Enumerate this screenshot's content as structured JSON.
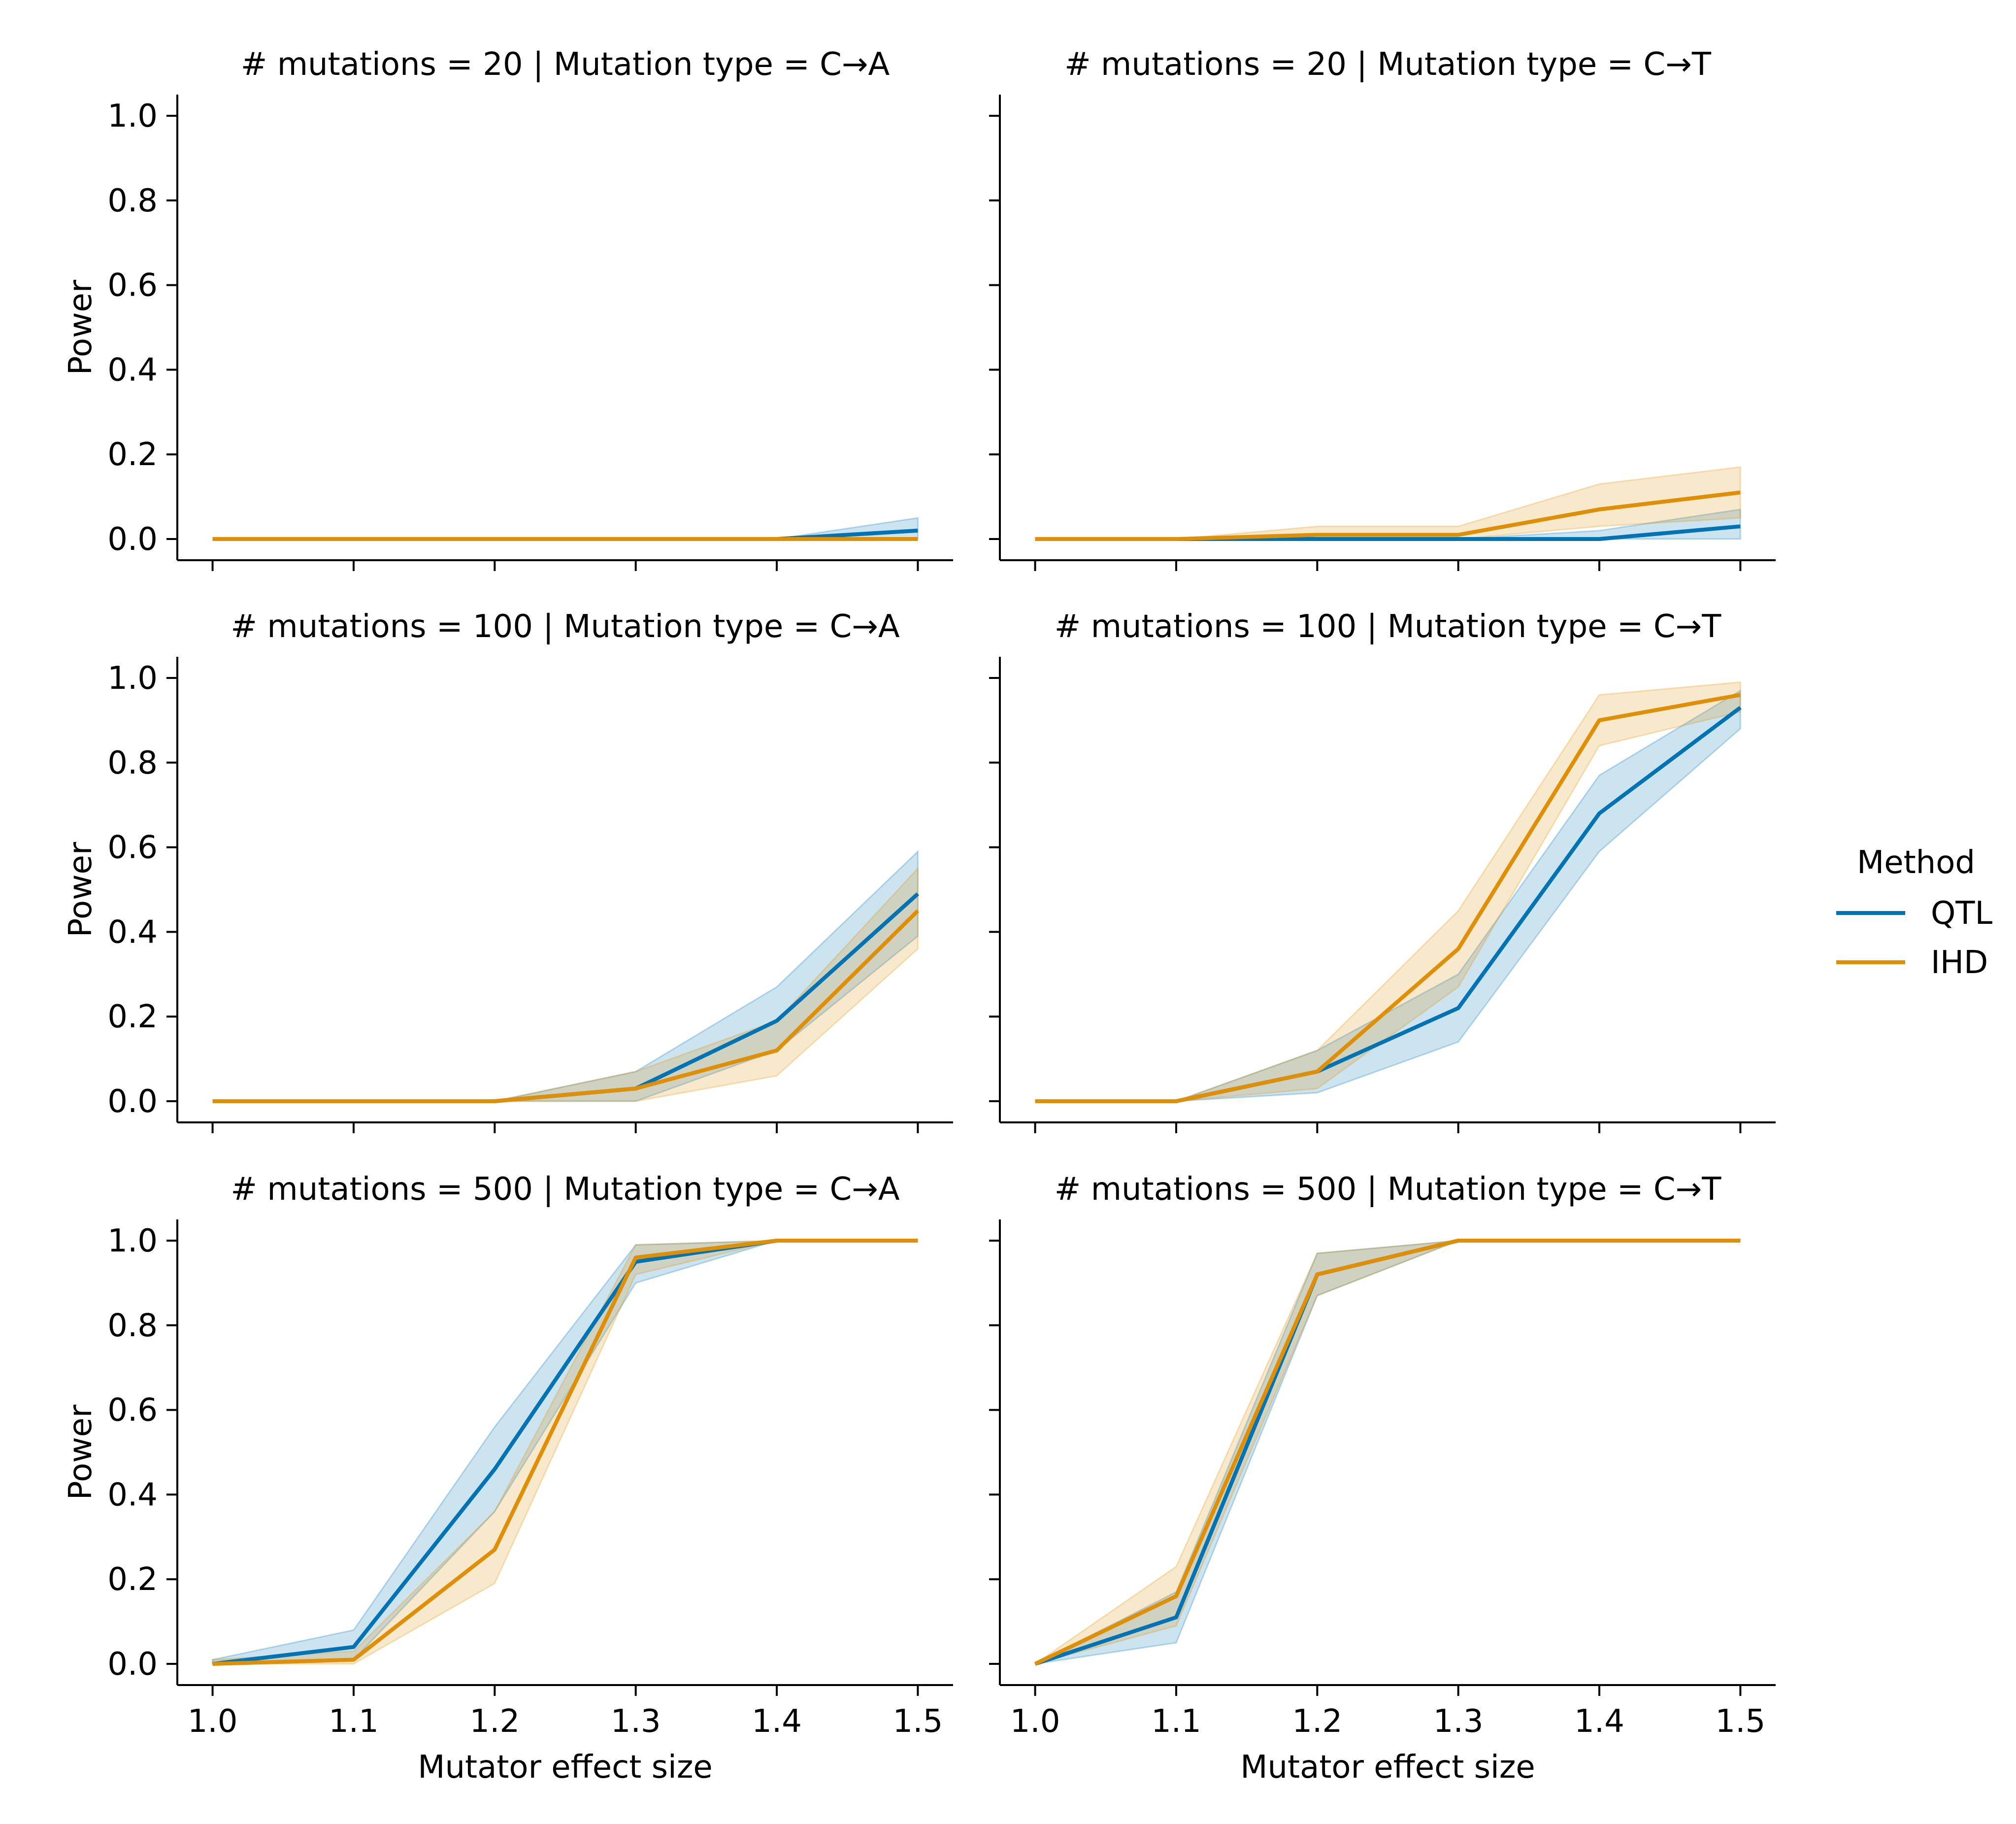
{
  "legend": {
    "title": "Method",
    "placement": "right-center",
    "entries": [
      {
        "label": "QTL",
        "color": "#0173b2"
      },
      {
        "label": "IHD",
        "color": "#de8f05"
      }
    ]
  },
  "chart_data": [
    {
      "type": "line",
      "title": "# mutations = 20 | Mutation type = C→A",
      "xlabel": "",
      "ylabel": "Power",
      "x": [
        1.0,
        1.1,
        1.2,
        1.3,
        1.4,
        1.5
      ],
      "xlim": [
        0.975,
        1.525
      ],
      "ylim": [
        -0.05,
        1.05
      ],
      "xticks": [
        "1.0",
        "1.1",
        "1.2",
        "1.3",
        "1.4",
        "1.5"
      ],
      "yticks": [
        "0.0",
        "0.2",
        "0.4",
        "0.6",
        "0.8",
        "1.0"
      ],
      "show_xtick_labels": false,
      "show_ytick_labels": true,
      "series": [
        {
          "name": "QTL",
          "color": "#0173b2",
          "values": [
            0,
            0,
            0,
            0,
            0,
            0.02
          ],
          "lower": [
            0,
            0,
            0,
            0,
            0,
            0
          ],
          "upper": [
            0,
            0,
            0,
            0,
            0,
            0.05
          ]
        },
        {
          "name": "IHD",
          "color": "#de8f05",
          "values": [
            0,
            0,
            0,
            0,
            0,
            0
          ],
          "lower": [
            0,
            0,
            0,
            0,
            0,
            0
          ],
          "upper": [
            0,
            0,
            0,
            0,
            0,
            0
          ]
        }
      ]
    },
    {
      "type": "line",
      "title": "# mutations = 20 | Mutation type = C→T",
      "xlabel": "",
      "ylabel": "",
      "x": [
        1.0,
        1.1,
        1.2,
        1.3,
        1.4,
        1.5
      ],
      "xlim": [
        0.975,
        1.525
      ],
      "ylim": [
        -0.05,
        1.05
      ],
      "xticks": [
        "1.0",
        "1.1",
        "1.2",
        "1.3",
        "1.4",
        "1.5"
      ],
      "yticks": [
        "0.0",
        "0.2",
        "0.4",
        "0.6",
        "0.8",
        "1.0"
      ],
      "show_xtick_labels": false,
      "show_ytick_labels": false,
      "series": [
        {
          "name": "QTL",
          "color": "#0173b2",
          "values": [
            0,
            0,
            0,
            0,
            0,
            0.03
          ],
          "lower": [
            0,
            0,
            0,
            0,
            0,
            0
          ],
          "upper": [
            0,
            0,
            0,
            0,
            0.02,
            0.07
          ]
        },
        {
          "name": "IHD",
          "color": "#de8f05",
          "values": [
            0,
            0,
            0.01,
            0.01,
            0.07,
            0.11
          ],
          "lower": [
            0,
            0,
            0,
            0,
            0.03,
            0.05
          ],
          "upper": [
            0,
            0,
            0.03,
            0.03,
            0.13,
            0.17
          ]
        }
      ]
    },
    {
      "type": "line",
      "title": "# mutations = 100 | Mutation type = C→A",
      "xlabel": "",
      "ylabel": "Power",
      "x": [
        1.0,
        1.1,
        1.2,
        1.3,
        1.4,
        1.5
      ],
      "xlim": [
        0.975,
        1.525
      ],
      "ylim": [
        -0.05,
        1.05
      ],
      "xticks": [
        "1.0",
        "1.1",
        "1.2",
        "1.3",
        "1.4",
        "1.5"
      ],
      "yticks": [
        "0.0",
        "0.2",
        "0.4",
        "0.6",
        "0.8",
        "1.0"
      ],
      "show_xtick_labels": false,
      "show_ytick_labels": true,
      "series": [
        {
          "name": "QTL",
          "color": "#0173b2",
          "values": [
            0,
            0,
            0,
            0.03,
            0.19,
            0.49
          ],
          "lower": [
            0,
            0,
            0,
            0,
            0.12,
            0.39
          ],
          "upper": [
            0,
            0,
            0,
            0.07,
            0.27,
            0.59
          ]
        },
        {
          "name": "IHD",
          "color": "#de8f05",
          "values": [
            0,
            0,
            0,
            0.03,
            0.12,
            0.45
          ],
          "lower": [
            0,
            0,
            0,
            0,
            0.06,
            0.36
          ],
          "upper": [
            0,
            0,
            0,
            0.07,
            0.19,
            0.55
          ]
        }
      ]
    },
    {
      "type": "line",
      "title": "# mutations = 100 | Mutation type = C→T",
      "xlabel": "",
      "ylabel": "",
      "x": [
        1.0,
        1.1,
        1.2,
        1.3,
        1.4,
        1.5
      ],
      "xlim": [
        0.975,
        1.525
      ],
      "ylim": [
        -0.05,
        1.05
      ],
      "xticks": [
        "1.0",
        "1.1",
        "1.2",
        "1.3",
        "1.4",
        "1.5"
      ],
      "yticks": [
        "0.0",
        "0.2",
        "0.4",
        "0.6",
        "0.8",
        "1.0"
      ],
      "show_xtick_labels": false,
      "show_ytick_labels": false,
      "series": [
        {
          "name": "QTL",
          "color": "#0173b2",
          "values": [
            0,
            0,
            0.07,
            0.22,
            0.68,
            0.93
          ],
          "lower": [
            0,
            0,
            0.02,
            0.14,
            0.59,
            0.88
          ],
          "upper": [
            0,
            0,
            0.12,
            0.3,
            0.77,
            0.97
          ]
        },
        {
          "name": "IHD",
          "color": "#de8f05",
          "values": [
            0,
            0,
            0.07,
            0.36,
            0.9,
            0.96
          ],
          "lower": [
            0,
            0,
            0.03,
            0.27,
            0.84,
            0.92
          ],
          "upper": [
            0,
            0,
            0.12,
            0.45,
            0.96,
            0.99
          ]
        }
      ]
    },
    {
      "type": "line",
      "title": "# mutations = 500 | Mutation type = C→A",
      "xlabel": "Mutator effect size",
      "ylabel": "Power",
      "x": [
        1.0,
        1.1,
        1.2,
        1.3,
        1.4,
        1.5
      ],
      "xlim": [
        0.975,
        1.525
      ],
      "ylim": [
        -0.05,
        1.05
      ],
      "xticks": [
        "1.0",
        "1.1",
        "1.2",
        "1.3",
        "1.4",
        "1.5"
      ],
      "yticks": [
        "0.0",
        "0.2",
        "0.4",
        "0.6",
        "0.8",
        "1.0"
      ],
      "show_xtick_labels": true,
      "show_ytick_labels": true,
      "series": [
        {
          "name": "QTL",
          "color": "#0173b2",
          "values": [
            0,
            0.04,
            0.46,
            0.95,
            1.0,
            1.0
          ],
          "lower": [
            0,
            0.01,
            0.36,
            0.9,
            1.0,
            1.0
          ],
          "upper": [
            0.01,
            0.08,
            0.56,
            0.99,
            1.0,
            1.0
          ]
        },
        {
          "name": "IHD",
          "color": "#de8f05",
          "values": [
            0,
            0.01,
            0.27,
            0.96,
            1.0,
            1.0
          ],
          "lower": [
            0,
            0,
            0.19,
            0.92,
            1.0,
            1.0
          ],
          "upper": [
            0.01,
            0.03,
            0.36,
            0.99,
            1.0,
            1.0
          ]
        }
      ]
    },
    {
      "type": "line",
      "title": "# mutations = 500 | Mutation type = C→T",
      "xlabel": "Mutator effect size",
      "ylabel": "",
      "x": [
        1.0,
        1.1,
        1.2,
        1.3,
        1.4,
        1.5
      ],
      "xlim": [
        0.975,
        1.525
      ],
      "ylim": [
        -0.05,
        1.05
      ],
      "xticks": [
        "1.0",
        "1.1",
        "1.2",
        "1.3",
        "1.4",
        "1.5"
      ],
      "yticks": [
        "0.0",
        "0.2",
        "0.4",
        "0.6",
        "0.8",
        "1.0"
      ],
      "show_xtick_labels": true,
      "show_ytick_labels": false,
      "series": [
        {
          "name": "QTL",
          "color": "#0173b2",
          "values": [
            0,
            0.11,
            0.92,
            1.0,
            1.0,
            1.0
          ],
          "lower": [
            0,
            0.05,
            0.87,
            1.0,
            1.0,
            1.0
          ],
          "upper": [
            0,
            0.17,
            0.97,
            1.0,
            1.0,
            1.0
          ]
        },
        {
          "name": "IHD",
          "color": "#de8f05",
          "values": [
            0,
            0.16,
            0.92,
            1.0,
            1.0,
            1.0
          ],
          "lower": [
            0,
            0.09,
            0.87,
            1.0,
            1.0,
            1.0
          ],
          "upper": [
            0,
            0.23,
            0.97,
            1.0,
            1.0,
            1.0
          ]
        }
      ]
    }
  ]
}
